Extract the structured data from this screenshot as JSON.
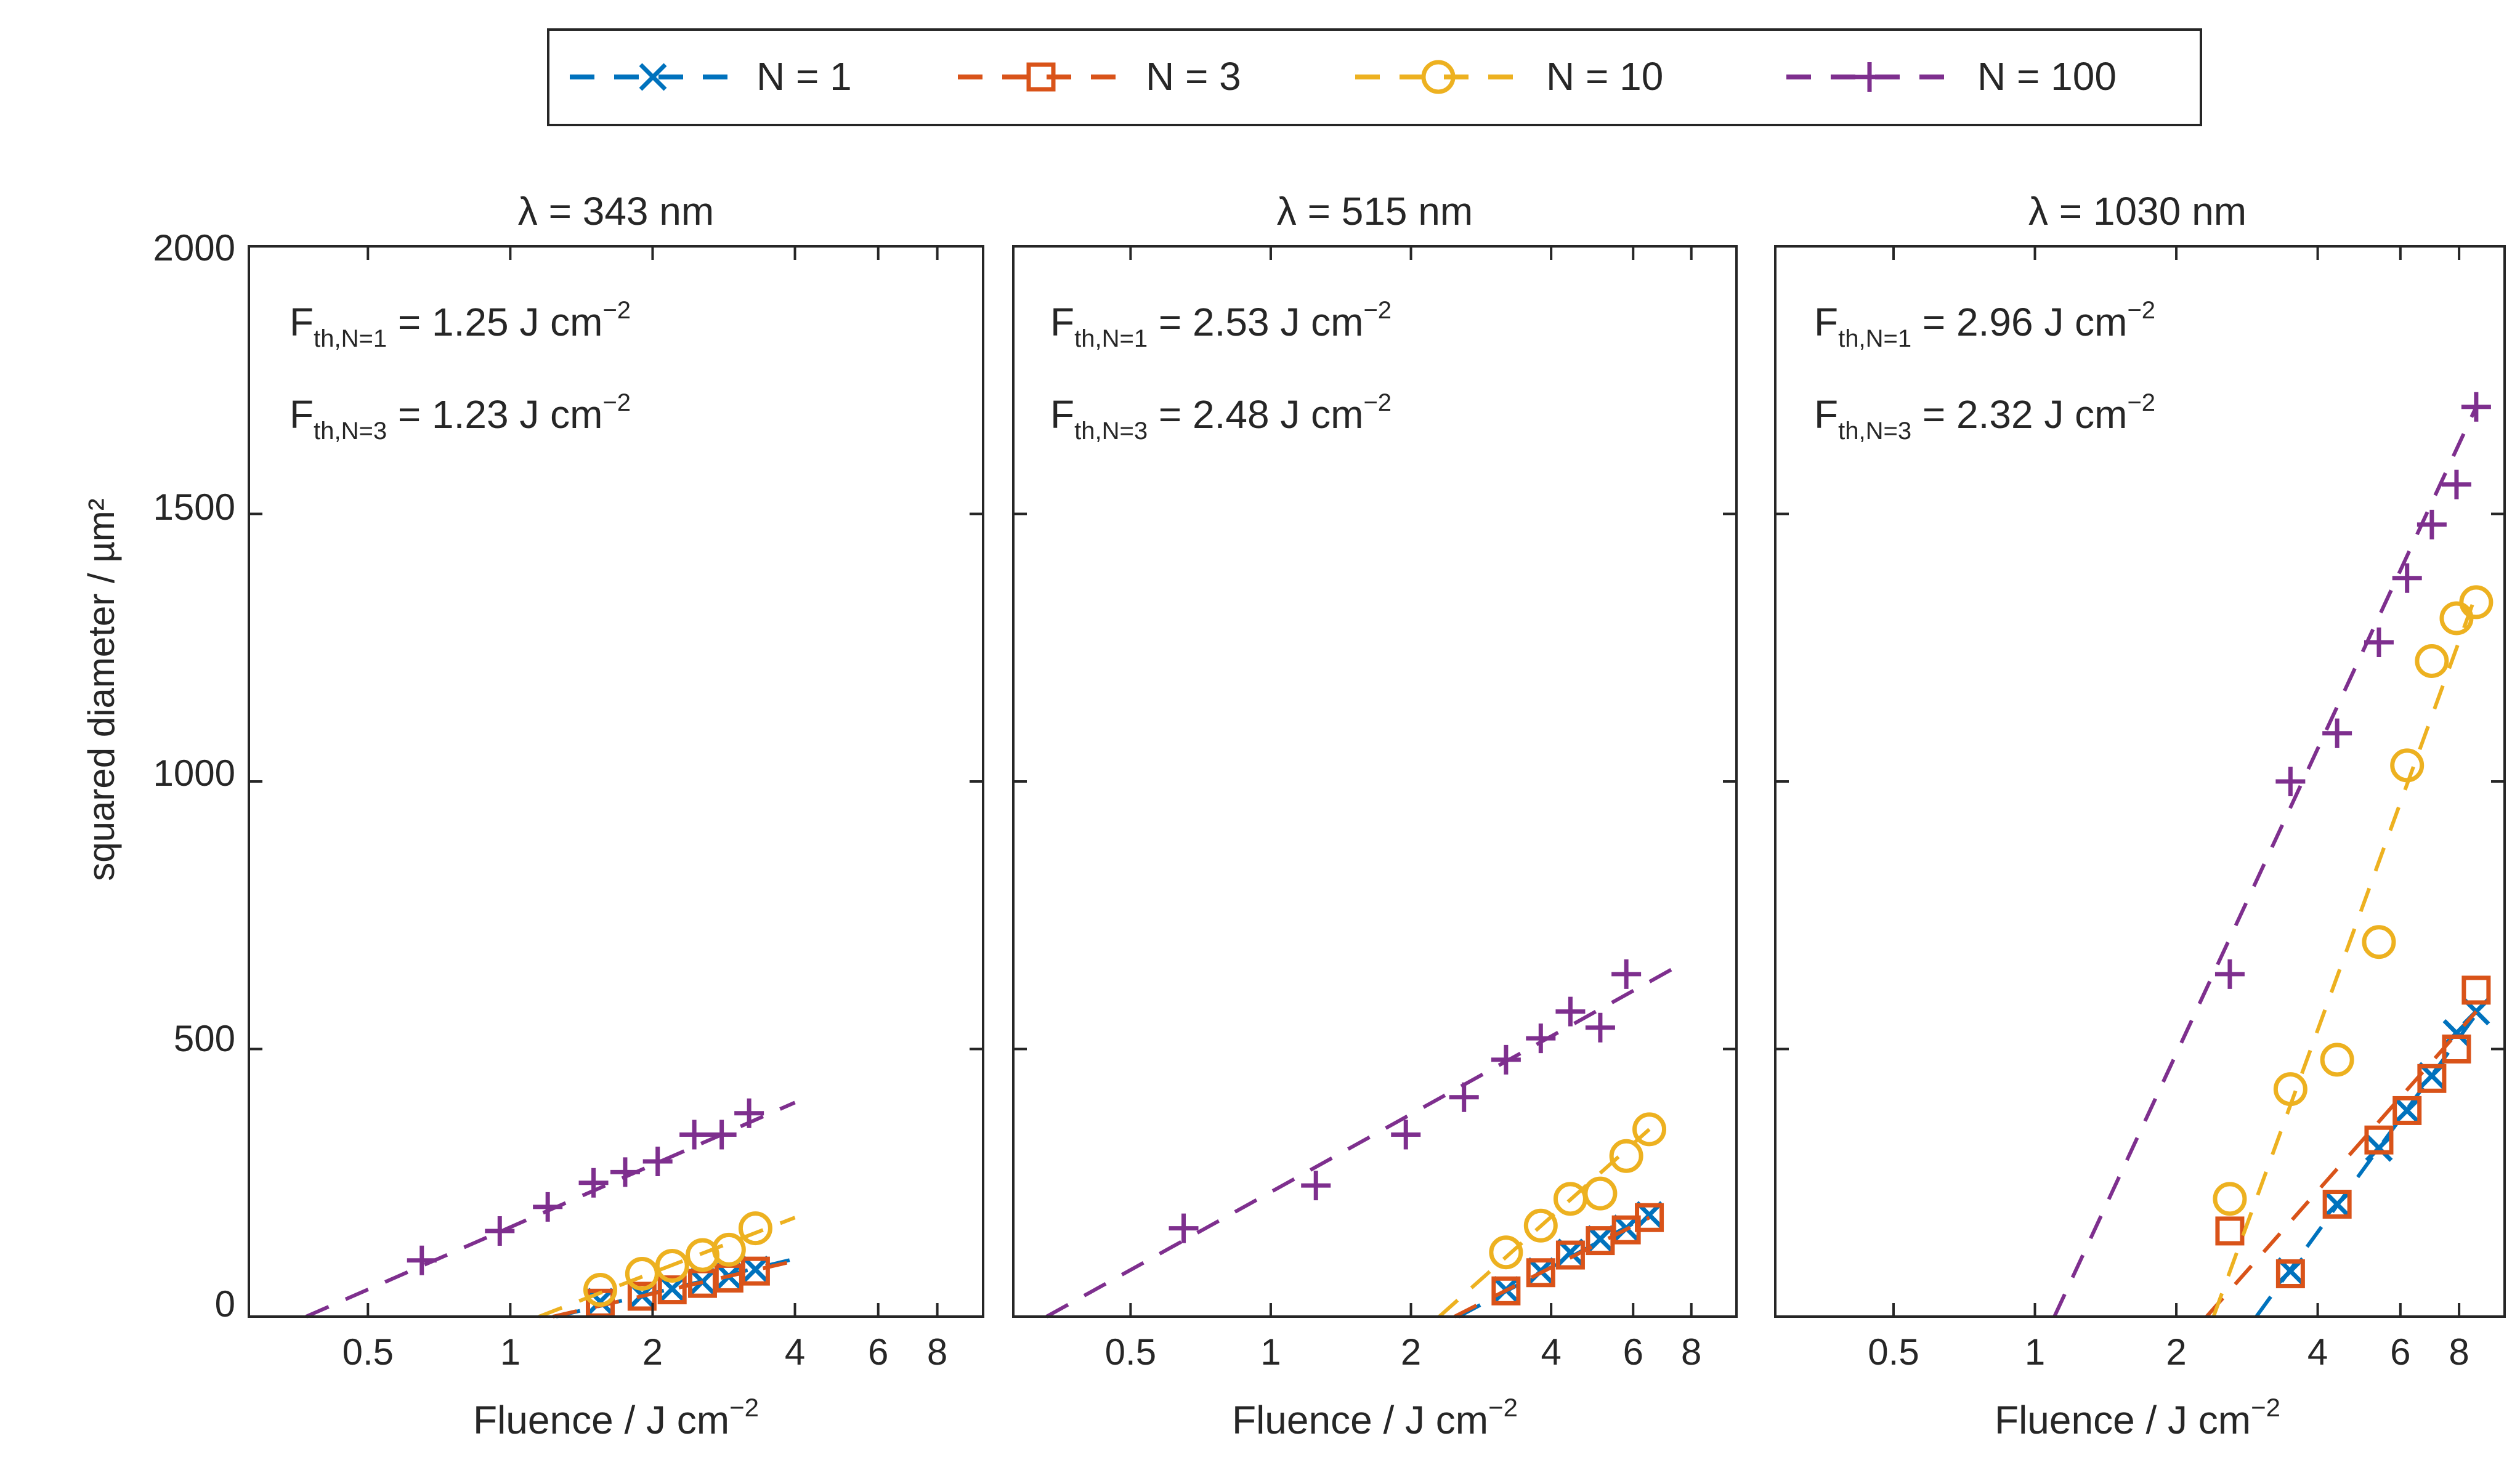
{
  "colors": {
    "N1": "#0072BD",
    "N3": "#D95319",
    "N10": "#EDB120",
    "N100": "#7E2F8E",
    "axis": "#262626"
  },
  "legend": [
    {
      "key": "N1",
      "label": "N = 1",
      "marker": "x"
    },
    {
      "key": "N3",
      "label": "N = 3",
      "marker": "square"
    },
    {
      "key": "N10",
      "label": "N = 10",
      "marker": "circle"
    },
    {
      "key": "N100",
      "label": "N = 100",
      "marker": "plus"
    }
  ],
  "axes": {
    "xlabel": "Fluence / J cm",
    "xlabel_sup": "−2",
    "ylabel": "squared diameter / µm²",
    "xscale": "log",
    "xlim": [
      0.28,
      10
    ],
    "ylim": [
      0,
      2000
    ],
    "xticks": [
      0.5,
      1,
      2,
      4,
      6,
      8
    ],
    "xtick_labels": [
      "0.5",
      "1",
      "2",
      "4",
      "6",
      "8"
    ],
    "yticks": [
      0,
      500,
      1000,
      1500,
      2000
    ],
    "ytick_labels": [
      "0",
      "500",
      "1000",
      "1500",
      "2000"
    ]
  },
  "chart_data": [
    {
      "type": "scatter",
      "title": "λ = 343 nm",
      "annotations": [
        {
          "sym": "F",
          "sub": "th,N=1",
          "value": " = 1.25 J cm",
          "sup": "−2"
        },
        {
          "sym": "F",
          "sub": "th,N=3",
          "value": " = 1.23 J cm",
          "sup": "−2"
        }
      ],
      "series": [
        {
          "key": "N1",
          "x": [
            1.55,
            1.9,
            2.2,
            2.55,
            2.9,
            3.3
          ],
          "y": [
            28,
            40,
            52,
            65,
            75,
            88
          ],
          "fit": [
            [
              1.25,
              0
            ],
            [
              4.0,
              108
            ]
          ]
        },
        {
          "key": "N3",
          "x": [
            1.55,
            1.9,
            2.2,
            2.55,
            2.9,
            3.3
          ],
          "y": [
            25,
            38,
            50,
            62,
            72,
            85
          ],
          "fit": [
            [
              1.23,
              0
            ],
            [
              4.0,
              104
            ]
          ]
        },
        {
          "key": "N10",
          "x": [
            1.55,
            1.9,
            2.2,
            2.55,
            2.9,
            3.3
          ],
          "y": [
            50,
            80,
            95,
            115,
            125,
            165
          ],
          "fit": [
            [
              1.15,
              0
            ],
            [
              4.0,
              185
            ]
          ]
        },
        {
          "key": "N100",
          "x": [
            0.65,
            0.95,
            1.2,
            1.5,
            1.75,
            2.05,
            2.45,
            2.8,
            3.2
          ],
          "y": [
            105,
            160,
            205,
            250,
            270,
            290,
            340,
            340,
            380
          ],
          "fit": [
            [
              0.37,
              0
            ],
            [
              4.0,
              400
            ]
          ]
        }
      ]
    },
    {
      "type": "scatter",
      "title": "λ = 515 nm",
      "annotations": [
        {
          "sym": "F",
          "sub": "th,N=1",
          "value": " = 2.53 J cm",
          "sup": "−2"
        },
        {
          "sym": "F",
          "sub": "th,N=3",
          "value": " = 2.48 J cm",
          "sup": "−2"
        }
      ],
      "series": [
        {
          "key": "N1",
          "x": [
            3.2,
            3.8,
            4.4,
            5.1,
            5.8,
            6.5
          ],
          "y": [
            50,
            85,
            120,
            145,
            165,
            190
          ],
          "fit": [
            [
              2.53,
              0
            ],
            [
              6.5,
              190
            ]
          ]
        },
        {
          "key": "N3",
          "x": [
            3.2,
            3.8,
            4.4,
            5.1,
            5.8,
            6.5
          ],
          "y": [
            48,
            82,
            115,
            142,
            162,
            185
          ],
          "fit": [
            [
              2.48,
              0
            ],
            [
              6.5,
              185
            ]
          ]
        },
        {
          "key": "N10",
          "x": [
            3.2,
            3.8,
            4.4,
            5.1,
            5.8,
            6.5
          ],
          "y": [
            120,
            170,
            220,
            230,
            300,
            350
          ],
          "fit": [
            [
              2.3,
              0
            ],
            [
              6.5,
              350
            ]
          ]
        },
        {
          "key": "N100",
          "x": [
            0.65,
            1.25,
            1.95,
            2.6,
            3.2,
            3.8,
            4.4,
            5.1,
            5.8
          ],
          "y": [
            165,
            245,
            340,
            410,
            480,
            520,
            570,
            540,
            640
          ],
          "fit": [
            [
              0.33,
              0
            ],
            [
              7.3,
              650
            ]
          ]
        }
      ]
    },
    {
      "type": "scatter",
      "title": "λ = 1030 nm",
      "annotations": [
        {
          "sym": "F",
          "sub": "th,N=1",
          "value": " = 2.96 J cm",
          "sup": "−2"
        },
        {
          "sym": "F",
          "sub": "th,N=3",
          "value": " = 2.32 J cm",
          "sup": "−2"
        }
      ],
      "series": [
        {
          "key": "N1",
          "x": [
            3.5,
            4.4,
            5.4,
            6.2,
            7.0,
            7.9,
            8.7
          ],
          "y": [
            85,
            210,
            315,
            385,
            450,
            530,
            570
          ],
          "fit": [
            [
              2.96,
              0
            ],
            [
              8.7,
              565
            ]
          ]
        },
        {
          "key": "N3",
          "x": [
            2.6,
            3.5,
            4.4,
            5.4,
            6.2,
            7.0,
            7.9,
            8.7
          ],
          "y": [
            160,
            80,
            210,
            330,
            385,
            445,
            500,
            610
          ],
          "fit": [
            [
              2.32,
              0
            ],
            [
              8.7,
              570
            ]
          ]
        },
        {
          "key": "N10",
          "x": [
            2.6,
            3.5,
            4.4,
            5.4,
            6.2,
            7.0,
            7.9,
            8.7
          ],
          "y": [
            220,
            425,
            480,
            700,
            1030,
            1225,
            1305,
            1335
          ],
          "fit": [
            [
              2.4,
              0
            ],
            [
              8.7,
              1350
            ]
          ]
        },
        {
          "key": "N100",
          "x": [
            2.6,
            3.5,
            4.4,
            5.4,
            6.2,
            7.0,
            7.9,
            8.7
          ],
          "y": [
            640,
            1000,
            1090,
            1260,
            1380,
            1480,
            1555,
            1700
          ],
          "fit": [
            [
              1.1,
              0
            ],
            [
              8.7,
              1700
            ]
          ]
        }
      ]
    }
  ]
}
